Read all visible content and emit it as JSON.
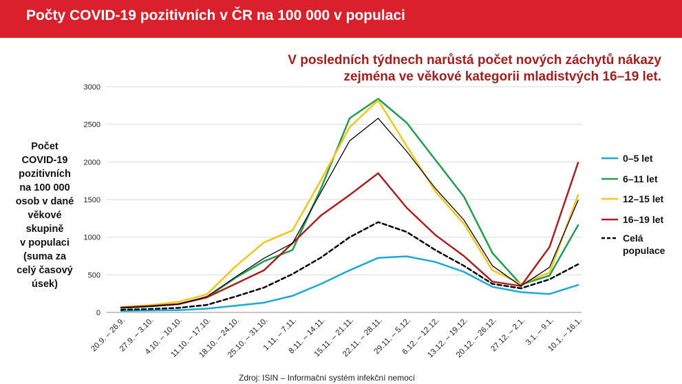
{
  "header": {
    "title": "Počty COVID-19 pozitivních v ČR na 100 000 v populaci"
  },
  "headline": {
    "line1": "V posledních týdnech narůstá počet nových záchytů nákazy",
    "line2": "zejména ve věkové kategorii mladistvých 16–19 let."
  },
  "ylabel_lines": [
    "Počet",
    "COVID-19",
    "pozitivních",
    "na 100 000",
    "osob v dané",
    "věkové",
    "skupině",
    "v populaci",
    "(suma za",
    "celý časový",
    "úsek)"
  ],
  "source": "Zdroj: ISIN – Informační systém infekční nemocí",
  "chart_data": {
    "type": "line",
    "ylim": [
      0,
      3000
    ],
    "yticks": [
      0,
      500,
      1000,
      1500,
      2000,
      2500,
      3000
    ],
    "grid": true,
    "legend_position": "right",
    "categories": [
      "20.9. – 26.9.",
      "27.9. – 3.10.",
      "4.10. – 10.10.",
      "11.10. – 17.10.",
      "18.10. – 24.10.",
      "25.10. – 31.10.",
      "1.11. – 7.11.",
      "8.11. – 14.11.",
      "15.11. – 21.11.",
      "22.11. – 28.11.",
      "29.11. – 5.12.",
      "6.12. – 12.12.",
      "13.12. – 19.12.",
      "20.12. – 26.12.",
      "27.12. – 2.1.",
      "3.1. – 9.1.",
      "10.1. – 16.1."
    ],
    "series": [
      {
        "name": "0–5 let",
        "color": "#1aa8d8",
        "dash": false,
        "width": 2.5,
        "values": [
          20,
          25,
          30,
          50,
          90,
          130,
          220,
          380,
          560,
          725,
          745,
          670,
          540,
          340,
          270,
          245,
          365
        ]
      },
      {
        "name": "6–11 let",
        "color": "#1f9e4f",
        "dash": false,
        "width": 2.5,
        "values": [
          60,
          80,
          110,
          200,
          460,
          680,
          830,
          1650,
          2580,
          2840,
          2520,
          2030,
          1540,
          790,
          370,
          490,
          1160
        ]
      },
      {
        "name": "12–15 let",
        "color": "#f5c518",
        "dash": false,
        "width": 2.5,
        "values": [
          70,
          95,
          140,
          240,
          610,
          930,
          1090,
          1760,
          2460,
          2820,
          2210,
          1610,
          1180,
          560,
          380,
          530,
          1560
        ]
      },
      {
        "name": "16–19 let",
        "color": "#b01c1c",
        "dash": false,
        "width": 2.5,
        "values": [
          65,
          85,
          110,
          200,
          380,
          560,
          920,
          1290,
          1560,
          1850,
          1390,
          1030,
          750,
          410,
          350,
          870,
          1990
        ]
      },
      {
        "name": "",
        "color": "#000000",
        "dash": false,
        "width": 1.3,
        "values": [
          60,
          80,
          110,
          210,
          470,
          720,
          920,
          1600,
          2280,
          2580,
          2140,
          1650,
          1230,
          620,
          350,
          600,
          1490
        ]
      },
      {
        "name": "Celá populace",
        "color": "#000000",
        "dash": true,
        "width": 2.5,
        "values": [
          35,
          45,
          60,
          100,
          210,
          330,
          510,
          730,
          1000,
          1200,
          1070,
          830,
          620,
          380,
          320,
          440,
          640
        ]
      }
    ]
  }
}
